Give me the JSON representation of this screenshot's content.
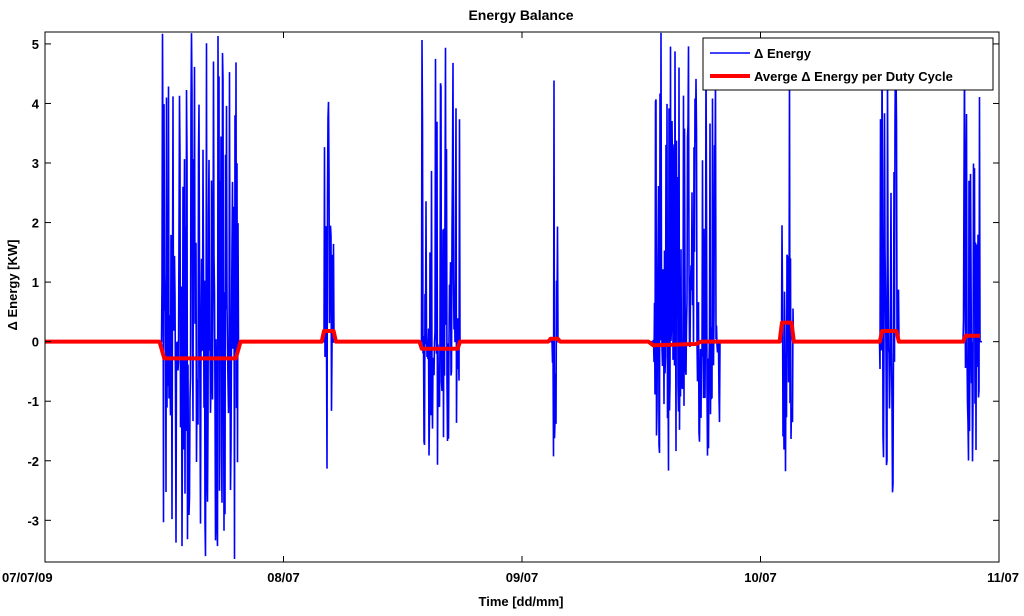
{
  "chart_data": {
    "type": "line",
    "title": "Energy Balance",
    "xlabel": "Time [dd/mm]",
    "ylabel": "Δ Energy [KW]",
    "xlim": [
      0,
      4
    ],
    "ylim": [
      -3.7,
      5.2
    ],
    "x_ticks": [
      {
        "value": 0,
        "label": "07/07/09"
      },
      {
        "value": 1,
        "label": "08/07"
      },
      {
        "value": 2,
        "label": "09/07"
      },
      {
        "value": 3,
        "label": "10/07"
      },
      {
        "value": 4,
        "label": "11/07"
      }
    ],
    "y_ticks": [
      -3,
      -2,
      -1,
      0,
      1,
      2,
      3,
      4,
      5
    ],
    "grid": false,
    "legend_position": "top-right",
    "series": [
      {
        "name": "Δ Energy",
        "color": "#0000ff",
        "style": "thin line",
        "bursts": [
          {
            "x_start": 0.49,
            "x_end": 0.81,
            "y_min": -3.7,
            "y_max": 5.2
          },
          {
            "x_start": 1.17,
            "x_end": 1.21,
            "y_min": -2.2,
            "y_max": 5.2
          },
          {
            "x_start": 1.58,
            "x_end": 1.74,
            "y_min": -2.2,
            "y_max": 5.2
          },
          {
            "x_start": 2.12,
            "x_end": 2.15,
            "y_min": -2.0,
            "y_max": 5.2
          },
          {
            "x_start": 2.55,
            "x_end": 2.83,
            "y_min": -2.2,
            "y_max": 5.2
          },
          {
            "x_start": 3.09,
            "x_end": 3.14,
            "y_min": -2.6,
            "y_max": 5.2
          },
          {
            "x_start": 3.5,
            "x_end": 3.58,
            "y_min": -3.1,
            "y_max": 5.2
          },
          {
            "x_start": 3.85,
            "x_end": 3.92,
            "y_min": -2.1,
            "y_max": 5.2
          }
        ]
      },
      {
        "name": "Averge Δ Energy per Duty Cycle",
        "color": "#ff0000",
        "style": "thick line",
        "points": [
          [
            0.0,
            0.0
          ],
          [
            0.48,
            0.0
          ],
          [
            0.5,
            -0.28
          ],
          [
            0.8,
            -0.28
          ],
          [
            0.82,
            0.0
          ],
          [
            1.16,
            0.0
          ],
          [
            1.17,
            0.18
          ],
          [
            1.21,
            0.18
          ],
          [
            1.22,
            0.0
          ],
          [
            1.57,
            0.0
          ],
          [
            1.58,
            -0.12
          ],
          [
            1.73,
            -0.12
          ],
          [
            1.74,
            0.0
          ],
          [
            2.11,
            0.0
          ],
          [
            2.12,
            0.05
          ],
          [
            2.15,
            0.05
          ],
          [
            2.16,
            0.0
          ],
          [
            2.53,
            0.0
          ],
          [
            2.55,
            -0.06
          ],
          [
            2.73,
            -0.04
          ],
          [
            2.75,
            0.0
          ],
          [
            3.08,
            0.0
          ],
          [
            3.09,
            0.32
          ],
          [
            3.13,
            0.32
          ],
          [
            3.14,
            0.0
          ],
          [
            3.5,
            0.0
          ],
          [
            3.51,
            0.18
          ],
          [
            3.57,
            0.18
          ],
          [
            3.58,
            0.0
          ],
          [
            3.85,
            0.0
          ],
          [
            3.86,
            0.1
          ],
          [
            3.92,
            0.1
          ]
        ]
      }
    ]
  }
}
